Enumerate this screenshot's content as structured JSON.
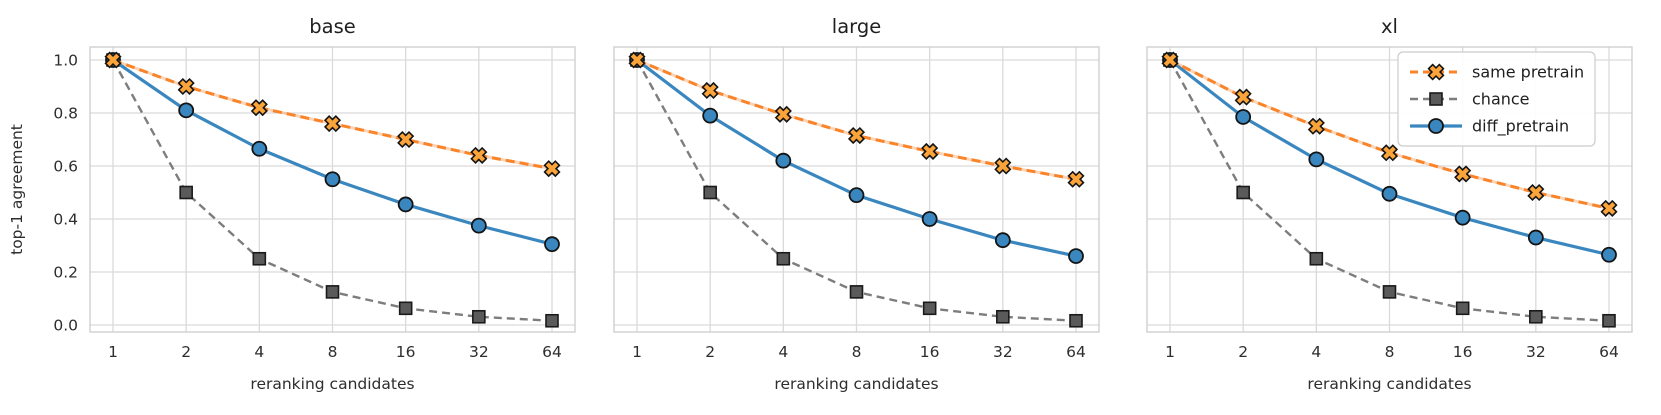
{
  "figure": {
    "background": "#ffffff",
    "grid_color": "#dadada",
    "spine_color": "#cfcfcf",
    "text_color": "#2e2e2e",
    "title_color": "#1f1f1f"
  },
  "chart_data": [
    {
      "type": "line",
      "title": "base",
      "xlabel": "reranking candidates",
      "ylabel": "top-1 agreement",
      "x": [
        1,
        2,
        4,
        8,
        16,
        32,
        64
      ],
      "xscale": "log2",
      "ylim": [
        0.0,
        1.0
      ],
      "yticks": [
        "1.0",
        "0.8",
        "0.6",
        "0.4",
        "0.2",
        "0.0"
      ],
      "ytick_values": [
        1.0,
        0.8,
        0.6,
        0.4,
        0.2,
        0.0
      ],
      "grid": true,
      "legend_visible": false,
      "series": [
        {
          "name": "chance",
          "values": [
            1.0,
            0.5,
            0.25,
            0.125,
            0.063,
            0.031,
            0.016
          ],
          "color": "#7d7d7d",
          "marker_face": "#5a5a5a",
          "marker_edge": "#1a1a1a",
          "style": "dashed",
          "marker": "square"
        },
        {
          "name": "diff_pretrain",
          "values": [
            1.0,
            0.81,
            0.665,
            0.55,
            0.455,
            0.375,
            0.305
          ],
          "color": "#3a87c0",
          "marker_face": "#3a87c0",
          "marker_edge": "#141414",
          "style": "solid",
          "marker": "circle"
        },
        {
          "name": "same pretrain",
          "values": [
            1.0,
            0.9,
            0.82,
            0.76,
            0.7,
            0.64,
            0.59
          ],
          "color": "#f9842a",
          "marker_face": "#faa43a",
          "marker_edge": "#141414",
          "style": "dashed",
          "marker": "x"
        }
      ]
    },
    {
      "type": "line",
      "title": "large",
      "xlabel": "reranking candidates",
      "ylabel": "",
      "x": [
        1,
        2,
        4,
        8,
        16,
        32,
        64
      ],
      "xscale": "log2",
      "ylim": [
        0.0,
        1.0
      ],
      "yticks": [],
      "ytick_values": [
        1.0,
        0.8,
        0.6,
        0.4,
        0.2,
        0.0
      ],
      "grid": true,
      "legend_visible": false,
      "series": [
        {
          "name": "chance",
          "values": [
            1.0,
            0.5,
            0.25,
            0.125,
            0.063,
            0.031,
            0.016
          ],
          "color": "#7d7d7d",
          "marker_face": "#5a5a5a",
          "marker_edge": "#1a1a1a",
          "style": "dashed",
          "marker": "square"
        },
        {
          "name": "diff_pretrain",
          "values": [
            1.0,
            0.79,
            0.62,
            0.49,
            0.4,
            0.32,
            0.26
          ],
          "color": "#3a87c0",
          "marker_face": "#3a87c0",
          "marker_edge": "#141414",
          "style": "solid",
          "marker": "circle"
        },
        {
          "name": "same pretrain",
          "values": [
            1.0,
            0.885,
            0.795,
            0.715,
            0.655,
            0.6,
            0.55
          ],
          "color": "#f9842a",
          "marker_face": "#faa43a",
          "marker_edge": "#141414",
          "style": "dashed",
          "marker": "x"
        }
      ]
    },
    {
      "type": "line",
      "title": "xl",
      "xlabel": "reranking candidates",
      "ylabel": "",
      "x": [
        1,
        2,
        4,
        8,
        16,
        32,
        64
      ],
      "xscale": "log2",
      "ylim": [
        0.0,
        1.0
      ],
      "yticks": [],
      "ytick_values": [
        1.0,
        0.8,
        0.6,
        0.4,
        0.2,
        0.0
      ],
      "grid": true,
      "legend_visible": true,
      "legend_position": "upper-right",
      "legend_order": [
        "same pretrain",
        "chance",
        "diff_pretrain"
      ],
      "series": [
        {
          "name": "chance",
          "values": [
            1.0,
            0.5,
            0.25,
            0.125,
            0.063,
            0.031,
            0.016
          ],
          "color": "#7d7d7d",
          "marker_face": "#5a5a5a",
          "marker_edge": "#1a1a1a",
          "style": "dashed",
          "marker": "square"
        },
        {
          "name": "diff_pretrain",
          "values": [
            1.0,
            0.785,
            0.625,
            0.495,
            0.405,
            0.33,
            0.265
          ],
          "color": "#3a87c0",
          "marker_face": "#3a87c0",
          "marker_edge": "#141414",
          "style": "solid",
          "marker": "circle"
        },
        {
          "name": "same pretrain",
          "values": [
            1.0,
            0.86,
            0.75,
            0.65,
            0.57,
            0.5,
            0.44
          ],
          "color": "#f9842a",
          "marker_face": "#faa43a",
          "marker_edge": "#141414",
          "style": "dashed",
          "marker": "x"
        }
      ]
    }
  ]
}
